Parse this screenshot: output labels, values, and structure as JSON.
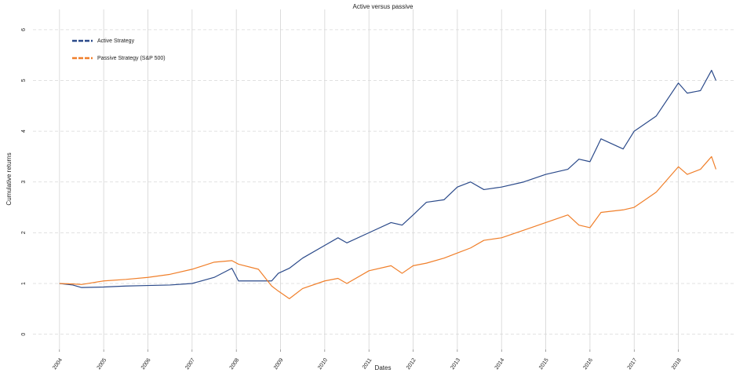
{
  "chart_data": {
    "type": "line",
    "title": "Active versus passive",
    "xlabel": "Dates",
    "ylabel": "Cumulative returns",
    "x": [
      2004,
      2004.3,
      2004.5,
      2005,
      2005.5,
      2006,
      2006.5,
      2007,
      2007.5,
      2007.9,
      2008.05,
      2008.5,
      2008.8,
      2008.95,
      2009.2,
      2009.5,
      2010,
      2010.3,
      2010.5,
      2011,
      2011.5,
      2011.75,
      2012,
      2012.3,
      2012.7,
      2013,
      2013.3,
      2013.6,
      2014,
      2014.5,
      2015,
      2015.5,
      2015.75,
      2016,
      2016.25,
      2016.75,
      2017,
      2017.5,
      2018,
      2018.2,
      2018.5,
      2018.75,
      2018.85
    ],
    "series": [
      {
        "name": "Active Strategy",
        "color": "#2b4a8a",
        "values": [
          1.0,
          0.97,
          0.92,
          0.93,
          0.95,
          0.96,
          0.97,
          1.0,
          1.12,
          1.3,
          1.05,
          1.05,
          1.05,
          1.2,
          1.3,
          1.5,
          1.75,
          1.9,
          1.8,
          2.0,
          2.2,
          2.15,
          2.35,
          2.6,
          2.65,
          2.9,
          3.0,
          2.85,
          2.9,
          3.0,
          3.15,
          3.25,
          3.45,
          3.4,
          3.85,
          3.65,
          4.0,
          4.3,
          4.95,
          4.75,
          4.8,
          5.2,
          5.0
        ]
      },
      {
        "name": "Passive Strategy (S&P 500)",
        "color": "#f07f2a",
        "values": [
          1.0,
          0.99,
          0.98,
          1.05,
          1.08,
          1.12,
          1.18,
          1.28,
          1.42,
          1.45,
          1.38,
          1.28,
          0.95,
          0.85,
          0.7,
          0.9,
          1.05,
          1.1,
          1.0,
          1.25,
          1.35,
          1.2,
          1.35,
          1.4,
          1.5,
          1.6,
          1.7,
          1.85,
          1.9,
          2.05,
          2.2,
          2.35,
          2.15,
          2.1,
          2.4,
          2.45,
          2.5,
          2.8,
          3.3,
          3.15,
          3.25,
          3.5,
          3.25
        ]
      }
    ],
    "xlim": [
      2003.4,
      2019.25
    ],
    "xticks": [
      2004,
      2005,
      2006,
      2007,
      2008,
      2009,
      2010,
      2011,
      2012,
      2013,
      2014,
      2015,
      2016,
      2017,
      2018
    ],
    "ylim": [
      -0.3,
      6.4
    ],
    "yticks": [
      0,
      1,
      2,
      3,
      4,
      5,
      6
    ],
    "grid": true,
    "legend": "upper left"
  }
}
